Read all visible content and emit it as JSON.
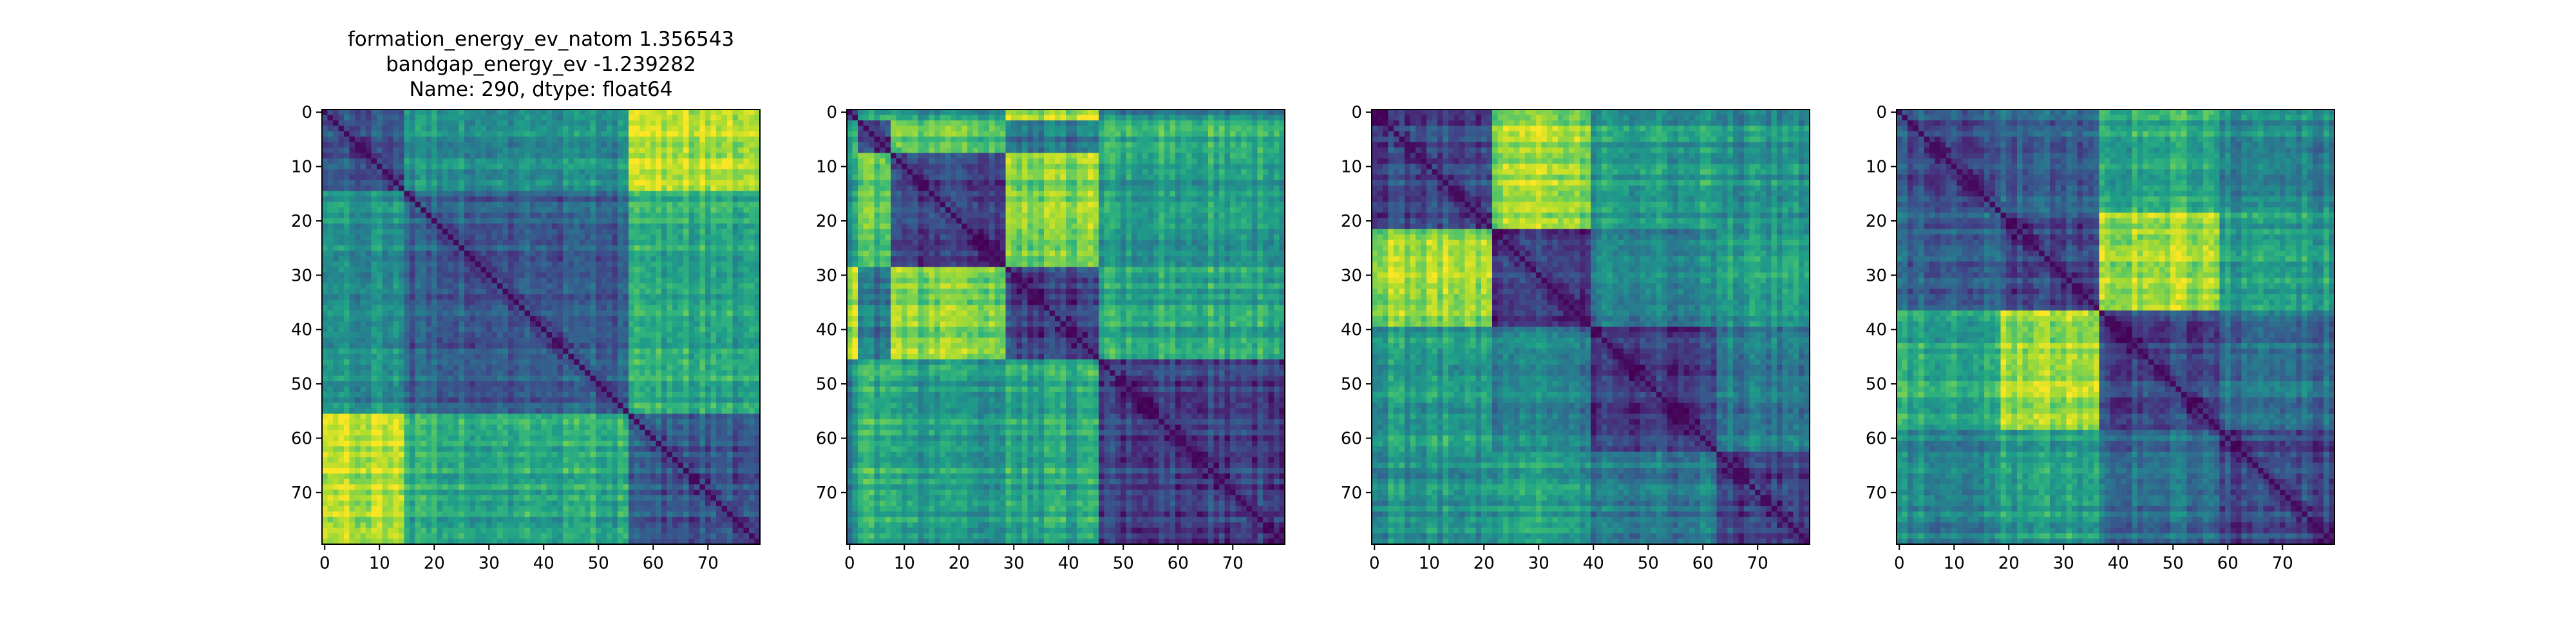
{
  "title_lines": [
    "formation_energy_ev_natom    1.356543",
    "bandgap_energy_ev          -1.239282",
    "Name: 290, dtype: float64"
  ],
  "chart_data": [
    {
      "type": "heatmap",
      "size": 80,
      "colormap": "viridis",
      "block_boundaries": [
        0,
        15,
        56,
        80
      ],
      "block_levels": [
        [
          0.25,
          0.5,
          0.88
        ],
        [
          0.5,
          0.3,
          0.6
        ],
        [
          0.88,
          0.6,
          0.25
        ]
      ],
      "x_ticks": [
        0,
        10,
        20,
        30,
        40,
        50,
        60,
        70
      ],
      "y_ticks": [
        0,
        10,
        20,
        30,
        40,
        50,
        60,
        70
      ]
    },
    {
      "type": "heatmap",
      "size": 80,
      "colormap": "viridis",
      "block_boundaries": [
        0,
        2,
        8,
        29,
        46,
        80
      ],
      "block_levels": [
        [
          0.2,
          0.6,
          0.5,
          0.85,
          0.45
        ],
        [
          0.6,
          0.25,
          0.75,
          0.4,
          0.65
        ],
        [
          0.5,
          0.75,
          0.2,
          0.8,
          0.55
        ],
        [
          0.85,
          0.4,
          0.8,
          0.18,
          0.6
        ],
        [
          0.45,
          0.65,
          0.55,
          0.6,
          0.2
        ]
      ],
      "x_ticks": [
        0,
        10,
        20,
        30,
        40,
        50,
        60,
        70
      ],
      "y_ticks": [
        0,
        10,
        20,
        30,
        40,
        50,
        60,
        70
      ]
    },
    {
      "type": "heatmap",
      "size": 80,
      "colormap": "viridis",
      "block_boundaries": [
        0,
        22,
        40,
        63,
        80
      ],
      "block_levels": [
        [
          0.22,
          0.85,
          0.55,
          0.5
        ],
        [
          0.85,
          0.18,
          0.45,
          0.55
        ],
        [
          0.55,
          0.45,
          0.18,
          0.4
        ],
        [
          0.5,
          0.55,
          0.4,
          0.18
        ]
      ],
      "x_ticks": [
        0,
        10,
        20,
        30,
        40,
        50,
        60,
        70
      ],
      "y_ticks": [
        0,
        10,
        20,
        30,
        40,
        50,
        60,
        70
      ]
    },
    {
      "type": "heatmap",
      "size": 80,
      "colormap": "viridis",
      "block_boundaries": [
        0,
        19,
        37,
        59,
        80
      ],
      "block_levels": [
        [
          0.25,
          0.3,
          0.6,
          0.45
        ],
        [
          0.3,
          0.2,
          0.85,
          0.55
        ],
        [
          0.6,
          0.85,
          0.2,
          0.35
        ],
        [
          0.45,
          0.55,
          0.35,
          0.2
        ]
      ],
      "x_ticks": [
        0,
        10,
        20,
        30,
        40,
        50,
        60,
        70
      ],
      "y_ticks": [
        0,
        10,
        20,
        30,
        40,
        50,
        60,
        70
      ]
    }
  ]
}
